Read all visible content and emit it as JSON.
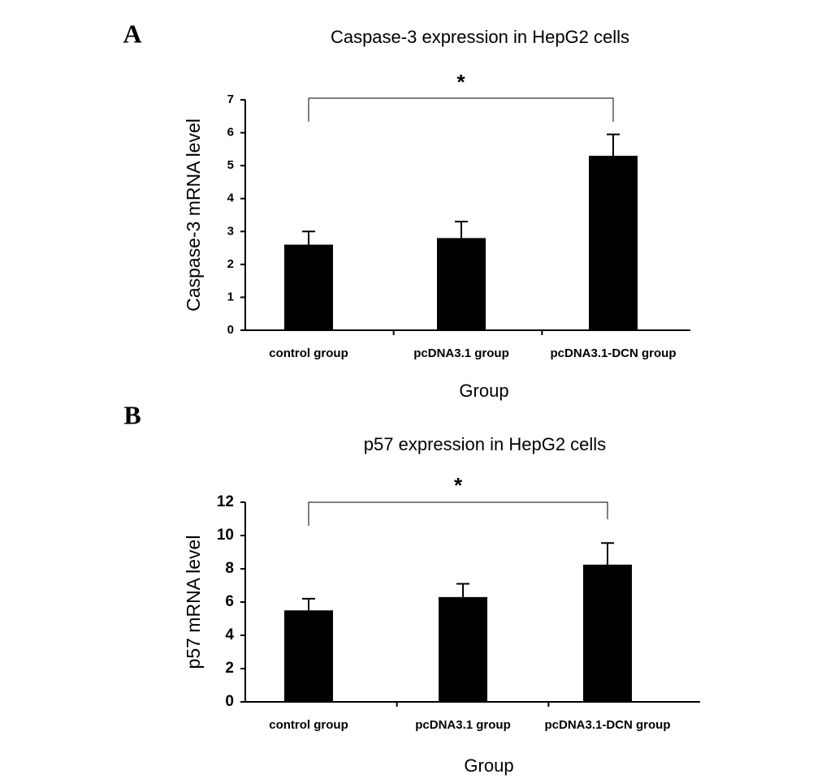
{
  "chart_data": [
    {
      "type": "bar",
      "panel_label": "A",
      "title": "Caspase-3 expression in HepG2 cells",
      "y_label": "Caspase-3 mRNA level",
      "x_label": "Group",
      "annotation": "*",
      "categories": [
        "control group",
        "pcDNA3.1 group",
        "pcDNA3.1-DCN group"
      ],
      "values": [
        2.6,
        2.8,
        5.3
      ],
      "errors": [
        0.4,
        0.5,
        0.65
      ],
      "color": "#000000",
      "ylim": [
        0,
        7
      ],
      "yticks": [
        0,
        1,
        2,
        3,
        4,
        5,
        6,
        7
      ]
    },
    {
      "type": "bar",
      "panel_label": "B",
      "title": "p57 expression in HepG2 cells",
      "y_label": "p57 mRNA level",
      "x_label": "Group",
      "annotation": "*",
      "categories": [
        "control group",
        "pcDNA3.1 group",
        "pcDNA3.1-DCN group"
      ],
      "values": [
        5.5,
        6.3,
        8.25
      ],
      "errors": [
        0.7,
        0.8,
        1.3
      ],
      "color": "#000000",
      "ylim": [
        0,
        12
      ],
      "yticks": [
        0,
        2,
        4,
        6,
        8,
        10,
        12
      ]
    }
  ]
}
